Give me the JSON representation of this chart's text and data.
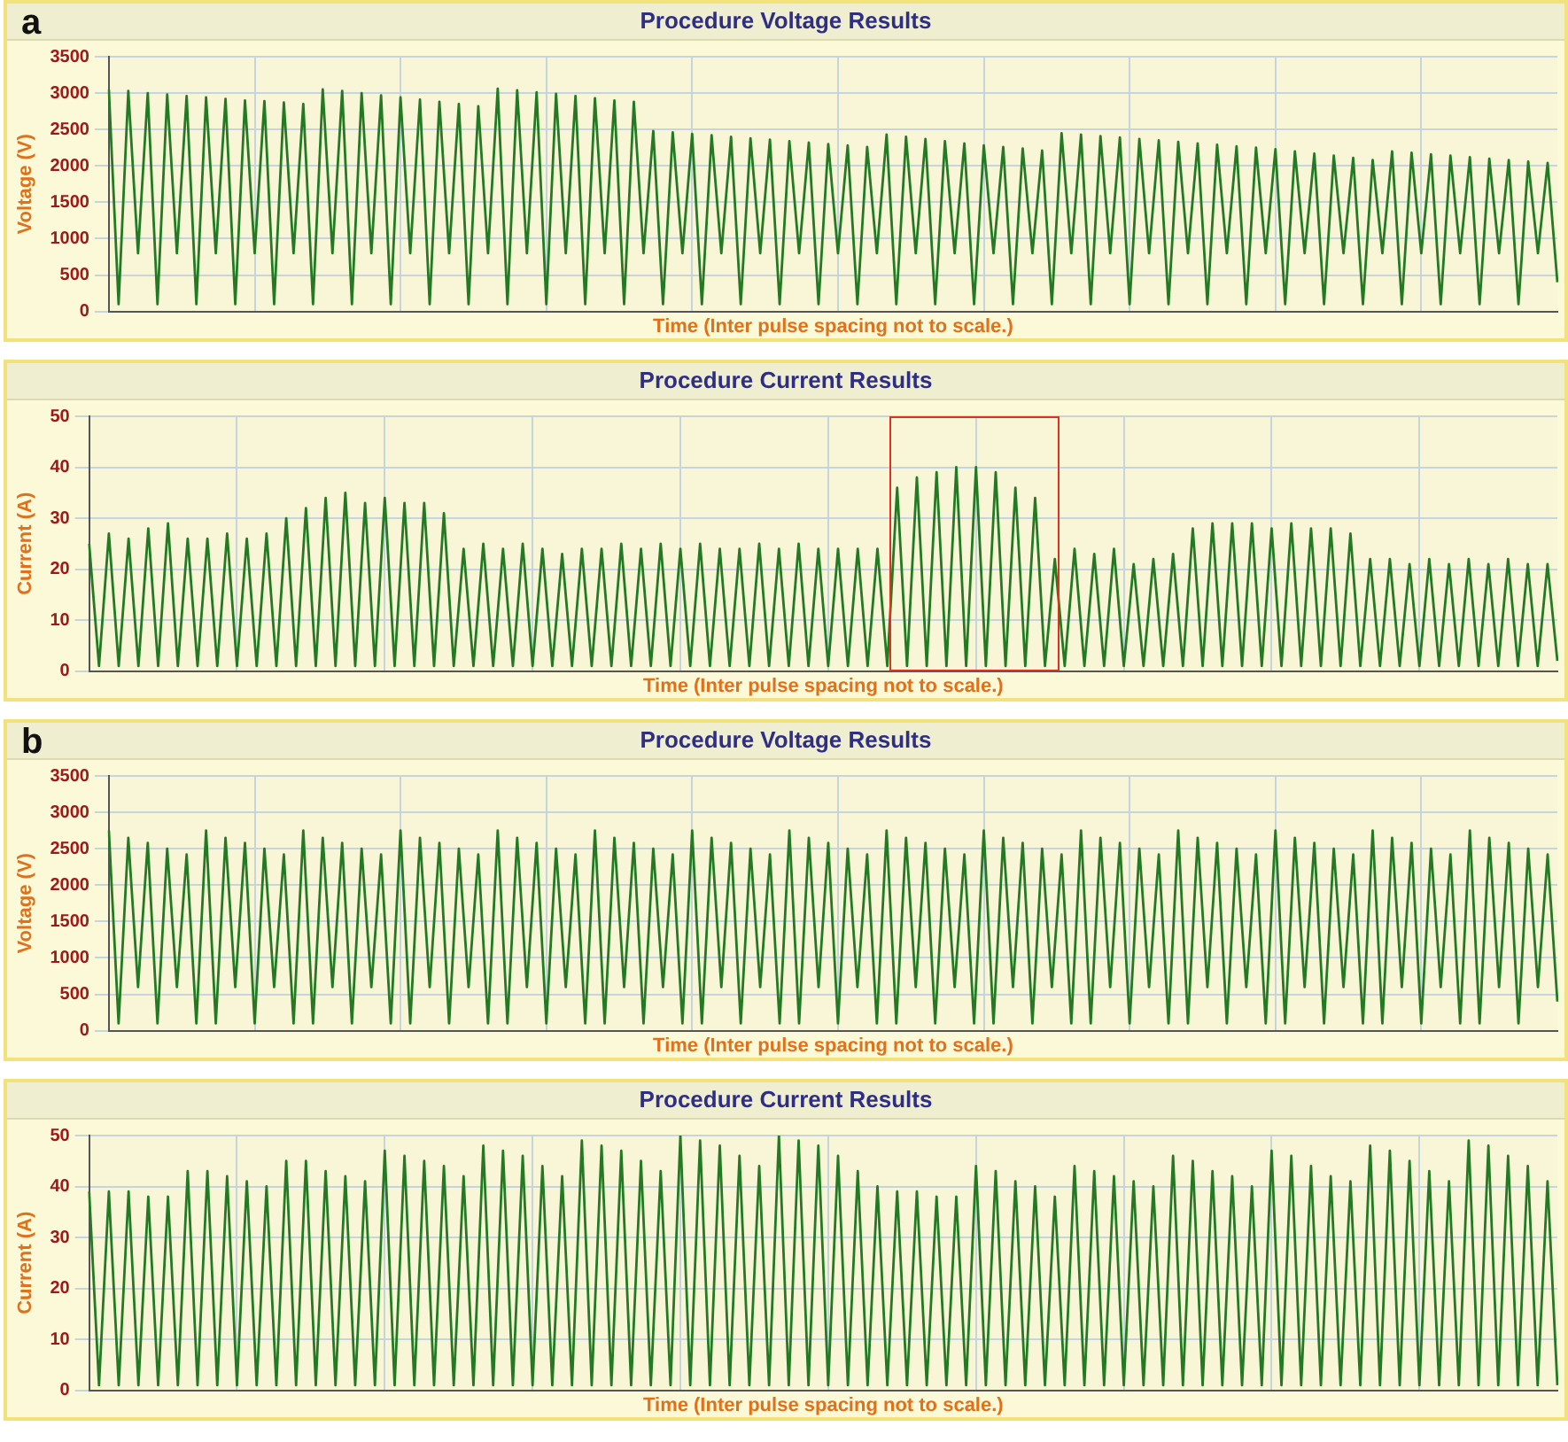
{
  "chart_data": [
    {
      "type": "line",
      "title": "Procedure Voltage Results",
      "xlabel": "Time (Inter pulse spacing not to scale.)",
      "ylabel": "Voltage (V)",
      "annotations": [
        "a"
      ],
      "color": "#237a23",
      "ylim": [
        0,
        3500
      ],
      "yticks": [
        0,
        500,
        1000,
        1500,
        2000,
        2500,
        3000,
        3500
      ],
      "grid": true,
      "tick_labels": "y",
      "marker": "none",
      "line_style": "solid",
      "categories": [
        null,
        null,
        null,
        null,
        null,
        null,
        null,
        null,
        null,
        null,
        null,
        null,
        null,
        null,
        null,
        null,
        null,
        null,
        null,
        null,
        null,
        null,
        null,
        null,
        null,
        null,
        null,
        null,
        null,
        null,
        null,
        null,
        null,
        null,
        null,
        null,
        null,
        null,
        null,
        null,
        null,
        null,
        null,
        null,
        null,
        null,
        null,
        null,
        null,
        null,
        null,
        null,
        null,
        null,
        null,
        null,
        null,
        null,
        null,
        null,
        null,
        null,
        null,
        null,
        null,
        null,
        null,
        null,
        null,
        null,
        null,
        null,
        null,
        null,
        null,
        null,
        null,
        null,
        null,
        null,
        null,
        null,
        null,
        null,
        null,
        null,
        null,
        null,
        null,
        null,
        null,
        null,
        null,
        null,
        null,
        null,
        null,
        null,
        null,
        null,
        null,
        null,
        null,
        null,
        null,
        null,
        null,
        null,
        null,
        null,
        null,
        null,
        null,
        null,
        null,
        null,
        null,
        null,
        null,
        null,
        null,
        null,
        null,
        null,
        null,
        null,
        null,
        null,
        null,
        null,
        null,
        null,
        null,
        null,
        null,
        null,
        null,
        null,
        null,
        null,
        null,
        null,
        null,
        null,
        null,
        null,
        null,
        null,
        null,
        null
      ],
      "values": [
        3050,
        100,
        3030,
        800,
        3000,
        100,
        2980,
        800,
        2960,
        100,
        2940,
        800,
        2920,
        100,
        2900,
        800,
        2890,
        100,
        2870,
        800,
        2850,
        100,
        3050,
        800,
        3030,
        100,
        3000,
        800,
        2970,
        100,
        2940,
        800,
        2910,
        100,
        2880,
        800,
        2850,
        100,
        2820,
        800,
        3060,
        100,
        3040,
        800,
        3010,
        100,
        2990,
        800,
        2960,
        100,
        2930,
        800,
        2900,
        100,
        2880,
        800,
        2480,
        100,
        2460,
        800,
        2440,
        100,
        2420,
        800,
        2400,
        100,
        2380,
        800,
        2360,
        100,
        2340,
        800,
        2320,
        100,
        2300,
        800,
        2280,
        100,
        2260,
        800,
        2430,
        100,
        2400,
        800,
        2370,
        100,
        2340,
        800,
        2310,
        100,
        2280,
        800,
        2260,
        100,
        2240,
        800,
        2210,
        100,
        2450,
        800,
        2430,
        100,
        2410,
        800,
        2390,
        100,
        2370,
        800,
        2350,
        100,
        2330,
        800,
        2310,
        100,
        2290,
        800,
        2270,
        100,
        2250,
        800,
        2230,
        100,
        2200,
        800,
        2170,
        100,
        2140,
        800,
        2110,
        100,
        2080,
        800,
        2200,
        100,
        2180,
        800,
        2160,
        100,
        2140,
        800,
        2120,
        100,
        2100,
        800,
        2080,
        100,
        2060,
        800,
        2040,
        400
      ]
    },
    {
      "type": "line",
      "title": "Procedure Current Results",
      "xlabel": "Time (Inter pulse spacing not to scale.)",
      "ylabel": "Current (A)",
      "color": "#237a23",
      "ylim": [
        0,
        50
      ],
      "yticks": [
        0,
        10,
        20,
        30,
        40,
        50
      ],
      "grid": true,
      "tick_labels": "y",
      "marker": "none",
      "line_style": "solid",
      "categories": [
        null,
        null,
        null,
        null,
        null,
        null,
        null,
        null,
        null,
        null,
        null,
        null,
        null,
        null,
        null,
        null,
        null,
        null,
        null,
        null,
        null,
        null,
        null,
        null,
        null,
        null,
        null,
        null,
        null,
        null,
        null,
        null,
        null,
        null,
        null,
        null,
        null,
        null,
        null,
        null,
        null,
        null,
        null,
        null,
        null,
        null,
        null,
        null,
        null,
        null,
        null,
        null,
        null,
        null,
        null,
        null,
        null,
        null,
        null,
        null,
        null,
        null,
        null,
        null,
        null,
        null,
        null,
        null,
        null,
        null,
        null,
        null,
        null,
        null,
        null,
        null,
        null,
        null,
        null,
        null,
        null,
        null,
        null,
        null,
        null,
        null,
        null,
        null,
        null,
        null,
        null,
        null,
        null,
        null,
        null,
        null,
        null,
        null,
        null,
        null,
        null,
        null,
        null,
        null,
        null,
        null,
        null,
        null,
        null,
        null,
        null,
        null,
        null,
        null,
        null,
        null,
        null,
        null,
        null,
        null,
        null,
        null,
        null,
        null,
        null,
        null,
        null,
        null,
        null,
        null,
        null,
        null,
        null,
        null,
        null,
        null,
        null,
        null,
        null,
        null,
        null,
        null,
        null,
        null,
        null,
        null,
        null,
        null,
        null,
        null
      ],
      "values": [
        25,
        1,
        27,
        1,
        26,
        1,
        28,
        1,
        29,
        1,
        26,
        1,
        26,
        1,
        27,
        1,
        26,
        1,
        27,
        1,
        30,
        1,
        32,
        1,
        34,
        1,
        35,
        1,
        33,
        1,
        34,
        1,
        33,
        1,
        33,
        1,
        31,
        1,
        24,
        1,
        25,
        1,
        24,
        1,
        25,
        1,
        24,
        1,
        23,
        1,
        24,
        1,
        24,
        1,
        25,
        1,
        24,
        1,
        25,
        1,
        24,
        1,
        25,
        1,
        24,
        1,
        24,
        1,
        25,
        1,
        24,
        1,
        25,
        1,
        24,
        1,
        24,
        1,
        24,
        1,
        24,
        1,
        36,
        1,
        38,
        1,
        39,
        1,
        40,
        1,
        40,
        1,
        39,
        1,
        36,
        1,
        34,
        1,
        22,
        1,
        24,
        1,
        23,
        1,
        24,
        1,
        21,
        1,
        22,
        1,
        23,
        1,
        28,
        1,
        29,
        1,
        29,
        1,
        29,
        1,
        28,
        1,
        29,
        1,
        28,
        1,
        28,
        1,
        27,
        1,
        22,
        1,
        22,
        1,
        21,
        1,
        22,
        1,
        21,
        1,
        22,
        1,
        21,
        1,
        22,
        1,
        21,
        1,
        21,
        2
      ]
    },
    {
      "type": "line",
      "title": "Procedure Voltage Results",
      "xlabel": "Time (Inter pulse spacing not to scale.)",
      "ylabel": "Voltage (V)",
      "annotations": [
        "b"
      ],
      "color": "#237a23",
      "ylim": [
        0,
        3500
      ],
      "yticks": [
        0,
        500,
        1000,
        1500,
        2000,
        2500,
        3000,
        3500
      ],
      "grid": true,
      "tick_labels": "y",
      "marker": "none",
      "line_style": "solid",
      "categories": [
        null,
        null,
        null,
        null,
        null,
        null,
        null,
        null,
        null,
        null,
        null,
        null,
        null,
        null,
        null,
        null,
        null,
        null,
        null,
        null,
        null,
        null,
        null,
        null,
        null,
        null,
        null,
        null,
        null,
        null,
        null,
        null,
        null,
        null,
        null,
        null,
        null,
        null,
        null,
        null,
        null,
        null,
        null,
        null,
        null,
        null,
        null,
        null,
        null,
        null,
        null,
        null,
        null,
        null,
        null,
        null,
        null,
        null,
        null,
        null,
        null,
        null,
        null,
        null,
        null,
        null,
        null,
        null,
        null,
        null,
        null,
        null,
        null,
        null,
        null,
        null,
        null,
        null,
        null,
        null,
        null,
        null,
        null,
        null,
        null,
        null,
        null,
        null,
        null,
        null,
        null,
        null,
        null,
        null,
        null,
        null,
        null,
        null,
        null,
        null,
        null,
        null,
        null,
        null,
        null,
        null,
        null,
        null,
        null,
        null,
        null,
        null,
        null,
        null,
        null,
        null,
        null,
        null,
        null,
        null,
        null,
        null,
        null,
        null,
        null,
        null,
        null,
        null,
        null,
        null,
        null,
        null,
        null,
        null,
        null,
        null,
        null,
        null,
        null,
        null,
        null,
        null,
        null,
        null,
        null,
        null,
        null,
        null,
        null,
        null
      ],
      "values": [
        2750,
        100,
        2650,
        600,
        2580,
        100,
        2500,
        600,
        2420,
        100,
        2750,
        100,
        2650,
        600,
        2580,
        100,
        2500,
        600,
        2420,
        100,
        2750,
        100,
        2650,
        600,
        2580,
        100,
        2500,
        600,
        2420,
        100,
        2750,
        100,
        2650,
        600,
        2580,
        100,
        2500,
        600,
        2420,
        100,
        2750,
        100,
        2650,
        600,
        2580,
        100,
        2500,
        600,
        2420,
        100,
        2750,
        100,
        2650,
        600,
        2580,
        100,
        2500,
        600,
        2420,
        100,
        2750,
        100,
        2650,
        600,
        2580,
        100,
        2500,
        600,
        2420,
        100,
        2750,
        100,
        2650,
        600,
        2580,
        100,
        2500,
        600,
        2420,
        100,
        2750,
        100,
        2650,
        600,
        2580,
        100,
        2500,
        600,
        2420,
        100,
        2750,
        100,
        2650,
        600,
        2580,
        100,
        2500,
        600,
        2420,
        100,
        2750,
        100,
        2650,
        600,
        2580,
        100,
        2500,
        600,
        2420,
        100,
        2750,
        100,
        2650,
        600,
        2580,
        100,
        2500,
        600,
        2420,
        100,
        2750,
        100,
        2650,
        600,
        2580,
        100,
        2500,
        600,
        2420,
        100,
        2750,
        100,
        2650,
        600,
        2580,
        100,
        2500,
        600,
        2420,
        100,
        2750,
        100,
        2650,
        600,
        2580,
        100,
        2500,
        600,
        2420,
        400
      ]
    },
    {
      "type": "line",
      "title": "Procedure Current Results",
      "xlabel": "Time (Inter pulse spacing not to scale.)",
      "ylabel": "Current (A)",
      "color": "#237a23",
      "ylim": [
        0,
        50
      ],
      "yticks": [
        0,
        10,
        20,
        30,
        40,
        50
      ],
      "grid": true,
      "tick_labels": "y",
      "marker": "none",
      "line_style": "solid",
      "categories": [
        null,
        null,
        null,
        null,
        null,
        null,
        null,
        null,
        null,
        null,
        null,
        null,
        null,
        null,
        null,
        null,
        null,
        null,
        null,
        null,
        null,
        null,
        null,
        null,
        null,
        null,
        null,
        null,
        null,
        null,
        null,
        null,
        null,
        null,
        null,
        null,
        null,
        null,
        null,
        null,
        null,
        null,
        null,
        null,
        null,
        null,
        null,
        null,
        null,
        null,
        null,
        null,
        null,
        null,
        null,
        null,
        null,
        null,
        null,
        null,
        null,
        null,
        null,
        null,
        null,
        null,
        null,
        null,
        null,
        null,
        null,
        null,
        null,
        null,
        null,
        null,
        null,
        null,
        null,
        null,
        null,
        null,
        null,
        null,
        null,
        null,
        null,
        null,
        null,
        null,
        null,
        null,
        null,
        null,
        null,
        null,
        null,
        null,
        null,
        null,
        null,
        null,
        null,
        null,
        null,
        null,
        null,
        null,
        null,
        null,
        null,
        null,
        null,
        null,
        null,
        null,
        null,
        null,
        null,
        null,
        null,
        null,
        null,
        null,
        null,
        null,
        null,
        null,
        null,
        null,
        null,
        null,
        null,
        null,
        null,
        null,
        null,
        null,
        null,
        null,
        null,
        null,
        null,
        null,
        null,
        null,
        null,
        null,
        null,
        null
      ],
      "values": [
        39,
        1,
        39,
        1,
        39,
        1,
        38,
        1,
        38,
        1,
        43,
        1,
        43,
        1,
        42,
        1,
        41,
        1,
        40,
        1,
        45,
        1,
        45,
        1,
        43,
        1,
        42,
        1,
        41,
        1,
        47,
        1,
        46,
        1,
        45,
        1,
        44,
        1,
        42,
        1,
        48,
        1,
        47,
        1,
        46,
        1,
        44,
        1,
        42,
        1,
        49,
        1,
        48,
        1,
        47,
        1,
        45,
        1,
        43,
        1,
        50,
        1,
        49,
        1,
        48,
        1,
        46,
        1,
        44,
        1,
        50,
        1,
        49,
        1,
        48,
        1,
        46,
        1,
        43,
        1,
        40,
        1,
        39,
        1,
        39,
        1,
        38,
        1,
        38,
        1,
        44,
        1,
        43,
        1,
        41,
        1,
        40,
        1,
        38,
        1,
        44,
        1,
        43,
        1,
        42,
        1,
        41,
        1,
        40,
        1,
        46,
        1,
        45,
        1,
        43,
        1,
        42,
        1,
        40,
        1,
        47,
        1,
        46,
        1,
        44,
        1,
        42,
        1,
        41,
        1,
        48,
        1,
        47,
        1,
        45,
        1,
        43,
        1,
        41,
        1,
        49,
        1,
        48,
        1,
        46,
        1,
        44,
        1,
        41,
        1
      ]
    }
  ]
}
